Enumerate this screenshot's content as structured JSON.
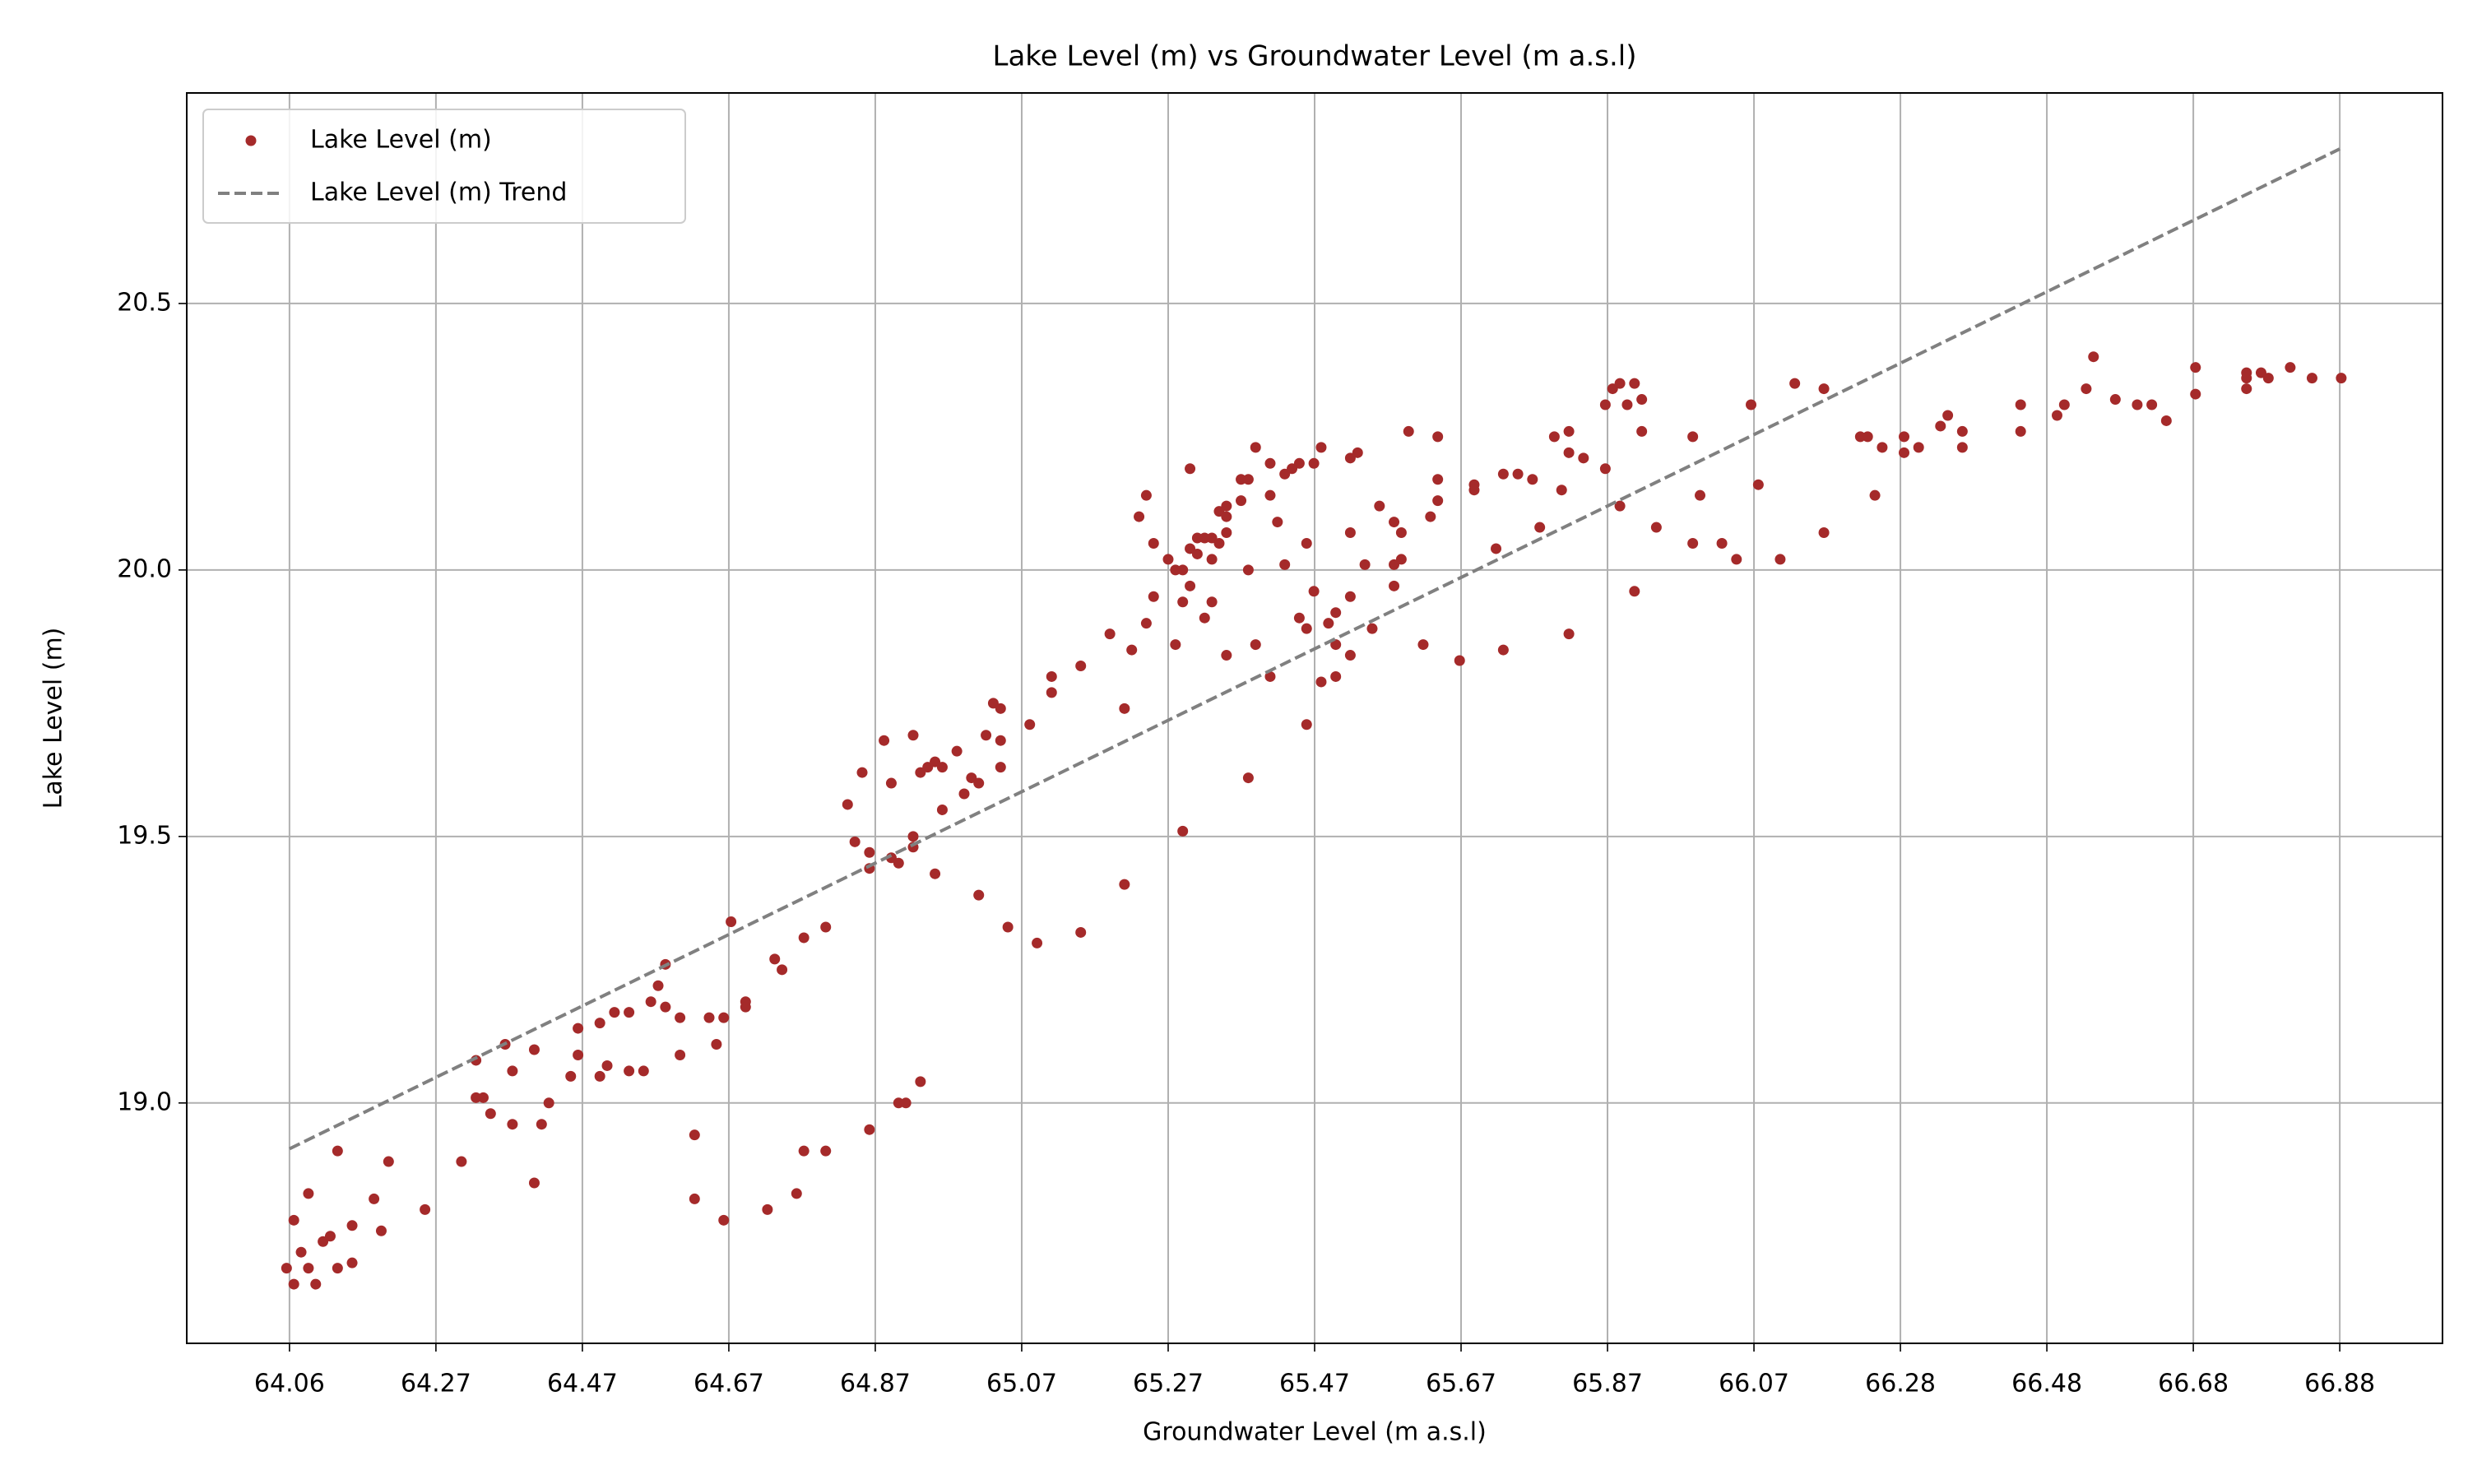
{
  "chart_data": {
    "type": "scatter",
    "title": "Lake Level (m) vs Groundwater Level (m a.s.l)",
    "x_label": "Groundwater Level (m a.s.l)",
    "y_label": "Lake Level (m)",
    "xlim": [
      63.923,
      67.019
    ],
    "ylim": [
      18.549,
      20.895
    ],
    "xticks": [
      {
        "value": 64.064,
        "label": "64.06"
      },
      {
        "value": 64.265,
        "label": "64.27"
      },
      {
        "value": 64.466,
        "label": "64.47"
      },
      {
        "value": 64.667,
        "label": "64.67"
      },
      {
        "value": 64.868,
        "label": "64.87"
      },
      {
        "value": 65.069,
        "label": "65.07"
      },
      {
        "value": 65.27,
        "label": "65.27"
      },
      {
        "value": 65.471,
        "label": "65.47"
      },
      {
        "value": 65.672,
        "label": "65.67"
      },
      {
        "value": 65.873,
        "label": "65.87"
      },
      {
        "value": 66.074,
        "label": "66.07"
      },
      {
        "value": 66.275,
        "label": "66.28"
      },
      {
        "value": 66.476,
        "label": "66.48"
      },
      {
        "value": 66.677,
        "label": "66.68"
      },
      {
        "value": 66.878,
        "label": "66.88"
      }
    ],
    "yticks": [
      {
        "value": 19,
        "label": "19.0"
      },
      19.5,
      {
        "value": 20,
        "label": "20.0"
      },
      20.5
    ],
    "grid": true,
    "legend": "upper left",
    "series": [
      {
        "name": "Lake Level (m)",
        "color": "#a52a2a",
        "x": [
          64.06,
          64.07,
          64.07,
          64.08,
          64.09,
          64.09,
          64.1,
          64.11,
          64.12,
          64.13,
          64.13,
          64.15,
          64.15,
          64.18,
          64.19,
          64.2,
          64.25,
          64.3,
          64.32,
          64.32,
          64.33,
          64.34,
          64.36,
          64.37,
          64.37,
          64.4,
          64.4,
          64.41,
          64.42,
          64.45,
          64.46,
          64.46,
          64.49,
          64.49,
          64.5,
          64.51,
          64.53,
          64.53,
          64.55,
          64.56,
          64.57,
          64.58,
          64.58,
          64.6,
          64.6,
          64.62,
          64.62,
          64.64,
          64.65,
          64.66,
          64.66,
          64.67,
          64.69,
          64.69,
          64.72,
          64.73,
          64.74,
          64.76,
          64.77,
          64.77,
          64.8,
          64.8,
          64.83,
          64.84,
          64.85,
          64.86,
          64.86,
          64.86,
          64.88,
          64.89,
          64.89,
          64.9,
          64.9,
          64.91,
          64.92,
          64.92,
          64.92,
          64.93,
          64.93,
          64.94,
          64.95,
          64.95,
          64.96,
          64.96,
          64.98,
          64.99,
          65.0,
          65.01,
          65.01,
          65.02,
          65.03,
          65.04,
          65.04,
          65.04,
          65.05,
          65.08,
          65.09,
          65.11,
          65.11,
          65.15,
          65.15,
          65.19,
          65.21,
          65.21,
          65.22,
          65.23,
          65.24,
          65.24,
          65.25,
          65.25,
          65.27,
          65.28,
          65.28,
          65.29,
          65.29,
          65.29,
          65.3,
          65.3,
          65.3,
          65.31,
          65.31,
          65.32,
          65.32,
          65.33,
          65.33,
          65.33,
          65.34,
          65.34,
          65.35,
          65.35,
          65.35,
          65.35,
          65.37,
          65.37,
          65.38,
          65.38,
          65.38,
          65.39,
          65.39,
          65.41,
          65.41,
          65.41,
          65.42,
          65.43,
          65.43,
          65.44,
          65.45,
          65.45,
          65.46,
          65.46,
          65.46,
          65.47,
          65.47,
          65.48,
          65.48,
          65.49,
          65.5,
          65.5,
          65.5,
          65.52,
          65.52,
          65.52,
          65.52,
          65.53,
          65.54,
          65.55,
          65.56,
          65.58,
          65.58,
          65.58,
          65.59,
          65.59,
          65.6,
          65.62,
          65.63,
          65.64,
          65.64,
          65.64,
          65.67,
          65.69,
          65.69,
          65.72,
          65.73,
          65.73,
          65.75,
          65.77,
          65.78,
          65.8,
          65.81,
          65.82,
          65.82,
          65.82,
          65.84,
          65.87,
          65.87,
          65.88,
          65.89,
          65.89,
          65.9,
          65.91,
          65.91,
          65.92,
          65.92,
          65.94,
          65.99,
          65.99,
          66.0,
          66.03,
          66.05,
          66.07,
          66.08,
          66.11,
          66.13,
          66.17,
          66.17,
          66.22,
          66.23,
          66.24,
          66.25,
          66.28,
          66.28,
          66.3,
          66.33,
          66.34,
          66.36,
          66.36,
          66.44,
          66.44,
          66.49,
          66.5,
          66.53,
          66.54,
          66.57,
          66.6,
          66.62,
          66.64,
          66.68,
          66.68,
          66.75,
          66.75,
          66.75,
          66.77,
          66.78,
          66.81,
          66.84,
          66.88
        ],
        "values": [
          18.69,
          18.66,
          18.78,
          18.72,
          18.69,
          18.83,
          18.66,
          18.74,
          18.75,
          18.69,
          18.91,
          18.7,
          18.77,
          18.82,
          18.76,
          18.89,
          18.8,
          18.89,
          19.08,
          19.01,
          19.01,
          18.98,
          19.11,
          19.06,
          18.96,
          19.1,
          18.85,
          18.96,
          19.0,
          19.05,
          19.14,
          19.09,
          19.15,
          19.05,
          19.07,
          19.17,
          19.06,
          19.17,
          19.06,
          19.19,
          19.22,
          19.26,
          19.18,
          19.09,
          19.16,
          18.82,
          18.94,
          19.16,
          19.11,
          18.78,
          19.16,
          19.34,
          19.19,
          19.18,
          18.8,
          19.27,
          19.25,
          18.83,
          18.91,
          19.31,
          18.91,
          19.33,
          19.56,
          19.49,
          19.62,
          18.95,
          19.44,
          19.47,
          19.68,
          19.6,
          19.46,
          19.45,
          19.0,
          19.0,
          19.5,
          19.48,
          19.69,
          19.04,
          19.62,
          19.63,
          19.64,
          19.43,
          19.55,
          19.63,
          19.66,
          19.58,
          19.61,
          19.39,
          19.6,
          19.69,
          19.75,
          19.63,
          19.74,
          19.68,
          19.33,
          19.71,
          19.3,
          19.77,
          19.8,
          19.82,
          19.32,
          19.88,
          19.74,
          19.41,
          19.85,
          20.1,
          20.14,
          19.9,
          19.95,
          20.05,
          20.02,
          19.86,
          20.0,
          20.0,
          19.51,
          19.94,
          20.19,
          19.97,
          20.04,
          20.06,
          20.03,
          19.91,
          20.06,
          19.94,
          20.02,
          20.06,
          20.11,
          20.05,
          19.84,
          20.07,
          20.12,
          20.1,
          20.13,
          20.17,
          19.61,
          20.17,
          20.0,
          20.23,
          19.86,
          20.14,
          20.2,
          19.8,
          20.09,
          20.18,
          20.01,
          20.19,
          19.91,
          20.2,
          19.89,
          19.71,
          20.05,
          20.2,
          19.96,
          19.79,
          20.23,
          19.9,
          19.86,
          19.8,
          19.92,
          20.21,
          19.84,
          20.07,
          19.95,
          20.22,
          20.01,
          19.89,
          20.12,
          20.09,
          20.01,
          19.97,
          20.02,
          20.07,
          20.26,
          19.86,
          20.1,
          20.17,
          20.25,
          20.13,
          19.83,
          20.16,
          20.15,
          20.04,
          19.85,
          20.18,
          20.18,
          20.17,
          20.08,
          20.25,
          20.15,
          19.88,
          20.22,
          20.26,
          20.21,
          20.19,
          20.31,
          20.34,
          20.35,
          20.12,
          20.31,
          20.35,
          19.96,
          20.32,
          20.26,
          20.08,
          20.05,
          20.25,
          20.14,
          20.05,
          20.02,
          20.31,
          20.16,
          20.02,
          20.35,
          20.34,
          20.07,
          20.25,
          20.25,
          20.14,
          20.23,
          20.25,
          20.22,
          20.23,
          20.27,
          20.29,
          20.26,
          20.23,
          20.31,
          20.26,
          20.29,
          20.31,
          20.34,
          20.4,
          20.32,
          20.31,
          20.31,
          20.28,
          20.38,
          20.33,
          20.36,
          20.34,
          20.37,
          20.37,
          20.36,
          20.38,
          20.36,
          20.36
        ]
      },
      {
        "name": "Lake Level (m) Trend",
        "color": "#808080",
        "type": "line",
        "dashed": true,
        "x": [
          64.064,
          66.878
        ],
        "values": [
          18.914,
          20.79
        ]
      }
    ]
  }
}
